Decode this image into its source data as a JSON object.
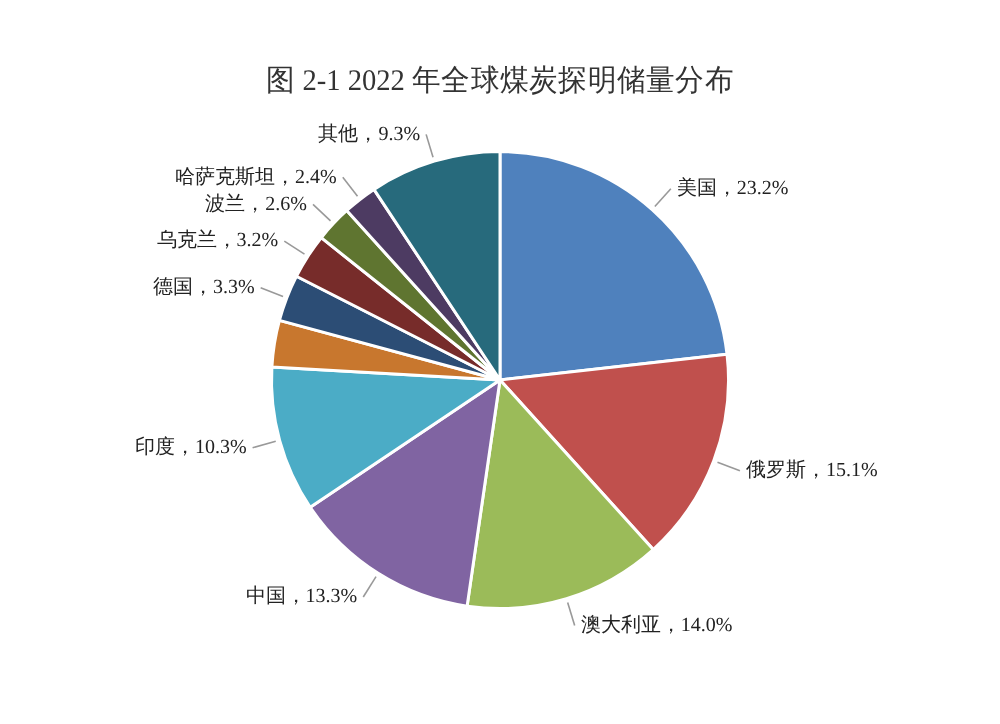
{
  "chart_data": {
    "type": "pie",
    "title": "图 2-1 2022 年全球煤炭探明储量分布",
    "categories": [
      "美国",
      "俄罗斯",
      "澳大利亚",
      "中国",
      "印度",
      null,
      "德国",
      "乌克兰",
      "波兰",
      "哈萨克斯坦",
      "其他"
    ],
    "values": [
      23.2,
      15.1,
      14.0,
      13.3,
      10.3,
      3.3,
      3.3,
      3.2,
      2.6,
      2.4,
      9.3
    ],
    "value_labels": [
      "23.2%",
      "15.1%",
      "14.0%",
      "13.3%",
      "10.3%",
      null,
      "3.3%",
      "3.2%",
      "2.6%",
      "2.4%",
      "9.3%"
    ],
    "colors": [
      "#4f81bd",
      "#c0504d",
      "#9bbb59",
      "#8064a2",
      "#4bacc6",
      "#c8772e",
      "#2c4d75",
      "#772c2a",
      "#5f7530",
      "#4d3b62",
      "#276a7c"
    ],
    "legend": false
  }
}
